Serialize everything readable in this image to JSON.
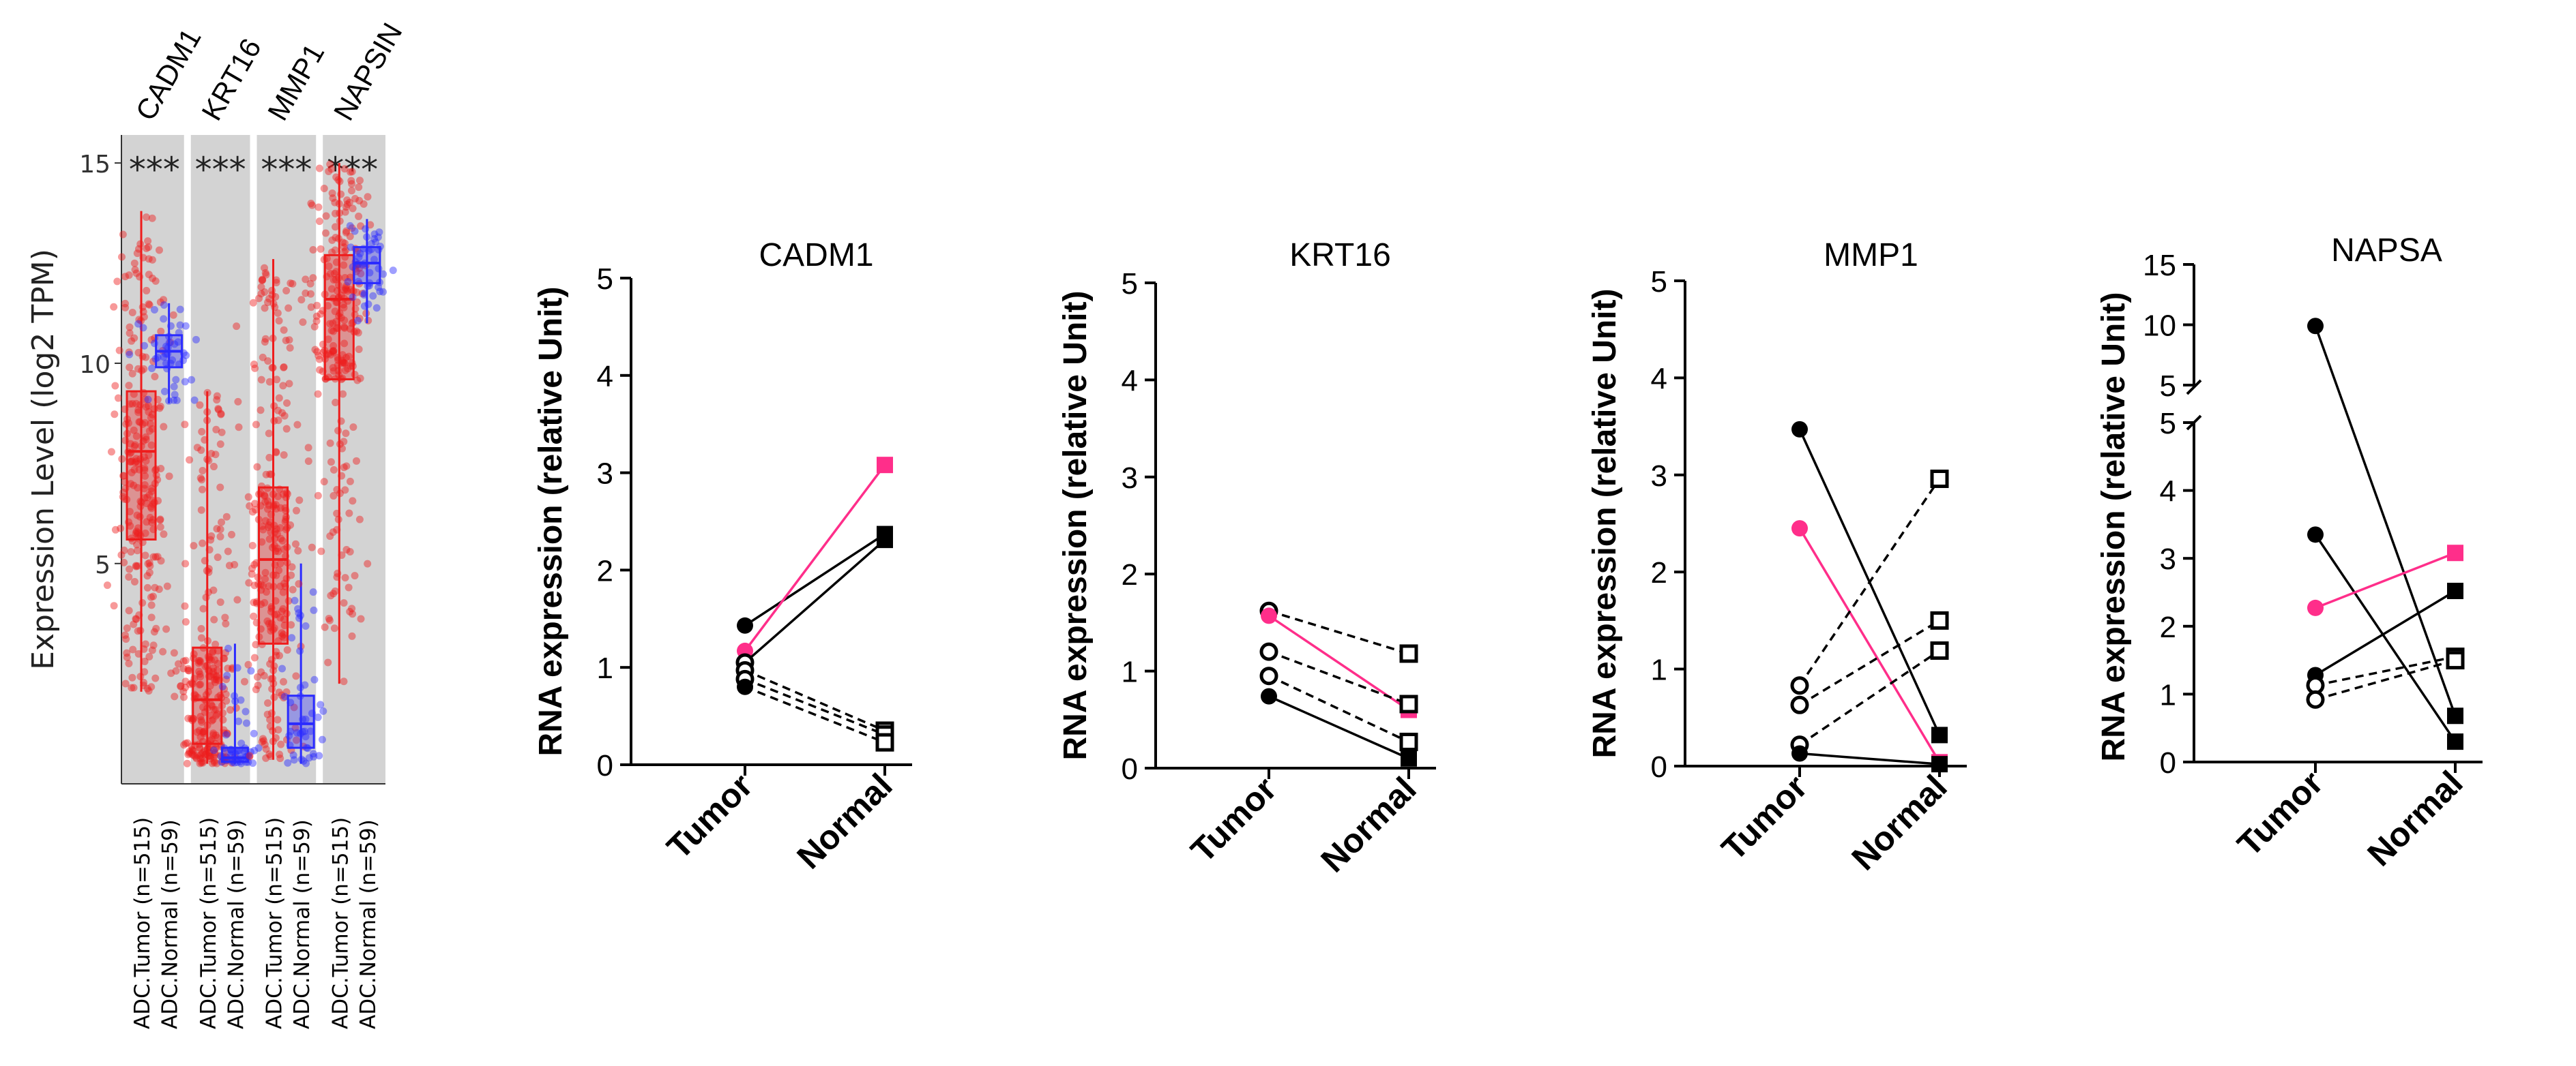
{
  "colors": {
    "tumor_red": "#ee1c1c",
    "normal_blue": "#2b2bff",
    "pink": "#ff2e8a",
    "panel_gray": "#d3d3d3",
    "black": "#000000"
  },
  "chart_data": [
    {
      "type": "box",
      "ylabel": "Expression Level (log2 TPM)",
      "yticks": [
        5,
        10,
        15
      ],
      "ylim": [
        -0.5,
        15.7
      ],
      "significance": "***",
      "genes": [
        {
          "name": "CADM1",
          "groups": [
            {
              "label": "ADC.Tumor (n=515)",
              "color": "red",
              "box": {
                "min": 1.8,
                "q1": 5.6,
                "median": 7.8,
                "q3": 9.3,
                "max": 13.8
              }
            },
            {
              "label": "ADC.Normal (n=59)",
              "color": "blue",
              "box": {
                "min": 9.0,
                "q1": 9.9,
                "median": 10.3,
                "q3": 10.7,
                "max": 11.5
              }
            }
          ]
        },
        {
          "name": "KRT16",
          "groups": [
            {
              "label": "ADC.Tumor (n=515)",
              "color": "red",
              "box": {
                "min": 0.0,
                "q1": 0.5,
                "median": 1.6,
                "q3": 2.9,
                "max": 9.3
              }
            },
            {
              "label": "ADC.Normal (n=59)",
              "color": "blue",
              "box": {
                "min": 0.0,
                "q1": 0.05,
                "median": 0.15,
                "q3": 0.4,
                "max": 3.0
              }
            }
          ]
        },
        {
          "name": "MMP1",
          "groups": [
            {
              "label": "ADC.Tumor (n=515)",
              "color": "red",
              "box": {
                "min": 0.1,
                "q1": 3.0,
                "median": 5.1,
                "q3": 6.9,
                "max": 12.6
              }
            },
            {
              "label": "ADC.Normal (n=59)",
              "color": "blue",
              "box": {
                "min": 0.0,
                "q1": 0.4,
                "median": 1.0,
                "q3": 1.7,
                "max": 5.0
              }
            }
          ]
        },
        {
          "name": "NAPSIN",
          "groups": [
            {
              "label": "ADC.Tumor (n=515)",
              "color": "red",
              "box": {
                "min": 2.0,
                "q1": 9.6,
                "median": 11.6,
                "q3": 12.7,
                "max": 15.0
              }
            },
            {
              "label": "ADC.Normal (n=59)",
              "color": "blue",
              "box": {
                "min": 11.0,
                "q1": 12.0,
                "median": 12.5,
                "q3": 12.9,
                "max": 13.6
              }
            }
          ]
        }
      ]
    },
    {
      "type": "line",
      "title": "CADM1",
      "ylabel": "RNA expression (relative Unit)",
      "xcategories": [
        "Tumor",
        "Normal"
      ],
      "yticks": [
        0,
        1,
        2,
        3,
        4,
        5
      ],
      "ylim": [
        0,
        5
      ],
      "pairs": [
        {
          "tumor": 1.43,
          "normal": 2.37,
          "style": "solid",
          "color": "black",
          "tumor_marker": "filled-circle",
          "normal_marker": "filled-square"
        },
        {
          "tumor": 1.17,
          "normal": 3.08,
          "style": "solid",
          "color": "pink",
          "tumor_marker": "filled-circle",
          "normal_marker": "filled-square"
        },
        {
          "tumor": 1.05,
          "normal": 2.31,
          "style": "solid",
          "color": "black",
          "tumor_marker": "open-circle",
          "normal_marker": "filled-square"
        },
        {
          "tumor": 0.97,
          "normal": 0.35,
          "style": "dashed",
          "color": "black",
          "tumor_marker": "open-circle",
          "normal_marker": "open-square"
        },
        {
          "tumor": 0.88,
          "normal": 0.31,
          "style": "dashed",
          "color": "black",
          "tumor_marker": "open-circle",
          "normal_marker": "open-square"
        },
        {
          "tumor": 0.8,
          "normal": 0.23,
          "style": "dashed",
          "color": "black",
          "tumor_marker": "filled-circle",
          "normal_marker": "open-square"
        }
      ]
    },
    {
      "type": "line",
      "title": "KRT16",
      "ylabel": "RNA expression (relative Unit)",
      "xcategories": [
        "Tumor",
        "Normal"
      ],
      "yticks": [
        0,
        1,
        2,
        3,
        4,
        5
      ],
      "ylim": [
        0,
        5
      ],
      "pairs": [
        {
          "tumor": 1.62,
          "normal": 1.18,
          "style": "dashed",
          "color": "black",
          "tumor_marker": "open-circle",
          "normal_marker": "open-square"
        },
        {
          "tumor": 1.57,
          "normal": 0.6,
          "style": "solid",
          "color": "pink",
          "tumor_marker": "filled-circle",
          "normal_marker": "filled-square"
        },
        {
          "tumor": 1.2,
          "normal": 0.66,
          "style": "dashed",
          "color": "black",
          "tumor_marker": "open-circle",
          "normal_marker": "open-square"
        },
        {
          "tumor": 0.95,
          "normal": 0.27,
          "style": "dashed",
          "color": "black",
          "tumor_marker": "open-circle",
          "normal_marker": "open-square"
        },
        {
          "tumor": 0.74,
          "normal": 0.1,
          "style": "solid",
          "color": "black",
          "tumor_marker": "filled-circle",
          "normal_marker": "filled-square"
        }
      ]
    },
    {
      "type": "line",
      "title": "MMP1",
      "ylabel": "RNA expression (relative Unit)",
      "xcategories": [
        "Tumor",
        "Normal"
      ],
      "yticks": [
        0,
        1,
        2,
        3,
        4,
        5
      ],
      "ylim": [
        0,
        5
      ],
      "pairs": [
        {
          "tumor": 3.47,
          "normal": 0.32,
          "style": "solid",
          "color": "black",
          "tumor_marker": "filled-circle",
          "normal_marker": "filled-square"
        },
        {
          "tumor": 2.45,
          "normal": 0.04,
          "style": "solid",
          "color": "pink",
          "tumor_marker": "filled-circle",
          "normal_marker": "filled-square"
        },
        {
          "tumor": 0.83,
          "normal": 2.96,
          "style": "dashed",
          "color": "black",
          "tumor_marker": "open-circle",
          "normal_marker": "open-square"
        },
        {
          "tumor": 0.63,
          "normal": 1.5,
          "style": "dashed",
          "color": "black",
          "tumor_marker": "open-circle",
          "normal_marker": "open-square"
        },
        {
          "tumor": 0.22,
          "normal": 1.19,
          "style": "dashed",
          "color": "black",
          "tumor_marker": "open-circle",
          "normal_marker": "open-square"
        },
        {
          "tumor": 0.13,
          "normal": 0.02,
          "style": "solid",
          "color": "black",
          "tumor_marker": "filled-circle",
          "normal_marker": "filled-square"
        }
      ]
    },
    {
      "type": "line",
      "title": "NAPSA",
      "ylabel": "RNA expression (relative Unit)",
      "xcategories": [
        "Tumor",
        "Normal"
      ],
      "broken_axis": true,
      "yticks_lower": [
        0,
        1,
        2,
        3,
        4,
        5
      ],
      "yticks_upper": [
        5,
        10,
        15
      ],
      "ylim_lower": [
        0,
        5
      ],
      "ylim_upper": [
        5,
        15
      ],
      "pairs": [
        {
          "tumor": 9.9,
          "normal": 0.68,
          "style": "solid",
          "color": "black",
          "tumor_marker": "filled-circle",
          "normal_marker": "filled-square"
        },
        {
          "tumor": 3.35,
          "normal": 0.3,
          "style": "solid",
          "color": "black",
          "tumor_marker": "filled-circle",
          "normal_marker": "filled-square"
        },
        {
          "tumor": 2.27,
          "normal": 3.08,
          "style": "solid",
          "color": "pink",
          "tumor_marker": "filled-circle",
          "normal_marker": "filled-square"
        },
        {
          "tumor": 1.28,
          "normal": 2.52,
          "style": "solid",
          "color": "black",
          "tumor_marker": "filled-circle",
          "normal_marker": "filled-square"
        },
        {
          "tumor": 1.13,
          "normal": 1.55,
          "style": "dashed",
          "color": "black",
          "tumor_marker": "open-circle",
          "normal_marker": "open-square"
        },
        {
          "tumor": 0.92,
          "normal": 1.5,
          "style": "dashed",
          "color": "black",
          "tumor_marker": "open-circle",
          "normal_marker": "open-square"
        }
      ]
    }
  ]
}
